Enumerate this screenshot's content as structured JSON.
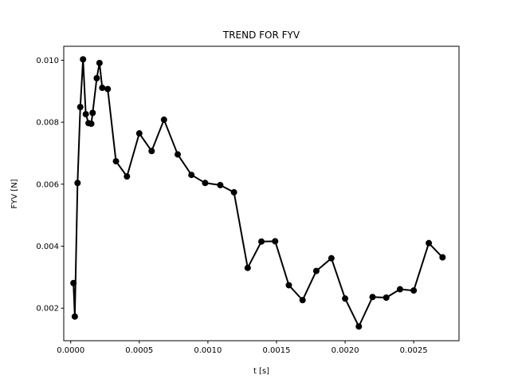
{
  "chart_data": {
    "type": "line",
    "title": "TREND FOR FYV",
    "xlabel": "t [s]",
    "ylabel": "FYV [N]",
    "xlim": [
      -5.06e-05,
      0.00283
    ],
    "ylim": [
      0.00095,
      0.01045
    ],
    "xticks": [
      {
        "value": 0.0,
        "label": "0.0000"
      },
      {
        "value": 0.0005,
        "label": "0.0005"
      },
      {
        "value": 0.001,
        "label": "0.0010"
      },
      {
        "value": 0.0015,
        "label": "0.0015"
      },
      {
        "value": 0.002,
        "label": "0.0020"
      },
      {
        "value": 0.0025,
        "label": "0.0025"
      }
    ],
    "yticks": [
      {
        "value": 0.002,
        "label": "0.002"
      },
      {
        "value": 0.004,
        "label": "0.004"
      },
      {
        "value": 0.006,
        "label": "0.006"
      },
      {
        "value": 0.008,
        "label": "0.008"
      },
      {
        "value": 0.01,
        "label": "0.010"
      }
    ],
    "grid": false,
    "series": [
      {
        "color": "#000000",
        "marker": "circle",
        "x": [
          2e-05,
          3e-05,
          5e-05,
          7e-05,
          9e-05,
          0.00011,
          0.00013,
          0.00015,
          0.00016,
          0.00019,
          0.00021,
          0.00023,
          0.00027,
          0.00033,
          0.00041,
          0.0005,
          0.00059,
          0.00068,
          0.00078,
          0.00088,
          0.00098,
          0.00109,
          0.00119,
          0.00129,
          0.00139,
          0.00149,
          0.00159,
          0.00169,
          0.00179,
          0.0019,
          0.002,
          0.0021,
          0.0022,
          0.0023,
          0.0024,
          0.0025,
          0.00261,
          0.00271
        ],
        "y": [
          0.00281,
          0.00173,
          0.00604,
          0.00849,
          0.01003,
          0.00826,
          0.00797,
          0.00795,
          0.0083,
          0.00942,
          0.00991,
          0.00911,
          0.00907,
          0.00674,
          0.00625,
          0.00764,
          0.00707,
          0.00808,
          0.00696,
          0.0063,
          0.00604,
          0.00597,
          0.00574,
          0.0033,
          0.00415,
          0.00416,
          0.00274,
          0.00226,
          0.0032,
          0.00361,
          0.00231,
          0.00141,
          0.00236,
          0.00234,
          0.00261,
          0.00257,
          0.0041,
          0.00364
        ]
      }
    ]
  }
}
